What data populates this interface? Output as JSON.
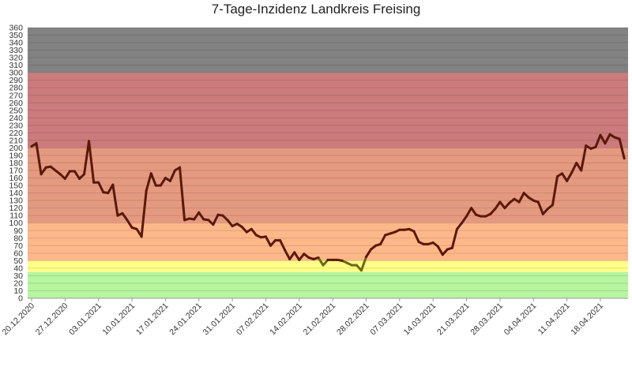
{
  "chart_data": {
    "type": "line",
    "title": "7-Tage-Inzidenz Landkreis Freising",
    "xlabel": "",
    "ylabel": "",
    "ylim": [
      0,
      360
    ],
    "ytick_step": 10,
    "grid": true,
    "x_tick_labels": [
      "20.12.2020",
      "27.12.2020",
      "03.01.2021",
      "10.01.2021",
      "17.01.2021",
      "24.01.2021",
      "31.01.2021",
      "07.02.2021",
      "14.02.2021",
      "21.02.2021",
      "28.02.2021",
      "07.03.2021",
      "14.03.2021",
      "21.03.2021",
      "28.03.2021",
      "04.04.2021",
      "11.04.2021",
      "18.04.2021"
    ],
    "x_tick_interval_days": 7,
    "bands": [
      {
        "from": 0,
        "to": 35,
        "color": "#b6f59e"
      },
      {
        "from": 35,
        "to": 50,
        "color": "#ffff88"
      },
      {
        "from": 50,
        "to": 100,
        "color": "#fdb88a"
      },
      {
        "from": 100,
        "to": 200,
        "color": "#e49a80"
      },
      {
        "from": 200,
        "to": 300,
        "color": "#cb7b7c"
      },
      {
        "from": 300,
        "to": 360,
        "color": "#828282"
      }
    ],
    "series": [
      {
        "name": "7-Tage-Inzidenz",
        "color": "#5c1808",
        "low_color": "#6b6a10",
        "values": [
          202,
          206,
          165,
          174,
          175,
          170,
          165,
          159,
          169,
          169,
          159,
          165,
          209,
          154,
          154,
          141,
          140,
          151,
          110,
          113,
          104,
          94,
          92,
          82,
          143,
          166,
          150,
          150,
          160,
          156,
          170,
          174,
          104,
          106,
          105,
          114,
          105,
          104,
          98,
          111,
          110,
          104,
          96,
          99,
          95,
          88,
          92,
          84,
          81,
          82,
          70,
          77,
          77,
          64,
          52,
          61,
          51,
          59,
          54,
          52,
          54,
          44,
          51,
          51,
          51,
          50,
          47,
          44,
          44,
          37,
          55,
          65,
          70,
          72,
          84,
          86,
          88,
          91,
          91,
          92,
          89,
          75,
          72,
          72,
          74,
          69,
          58,
          65,
          67,
          92,
          100,
          109,
          120,
          111,
          109,
          109,
          112,
          119,
          128,
          120,
          127,
          132,
          128,
          140,
          134,
          130,
          128,
          112,
          119,
          124,
          162,
          166,
          156,
          167,
          180,
          170,
          203,
          199,
          201,
          217,
          206,
          218,
          214,
          212,
          186
        ]
      }
    ]
  }
}
